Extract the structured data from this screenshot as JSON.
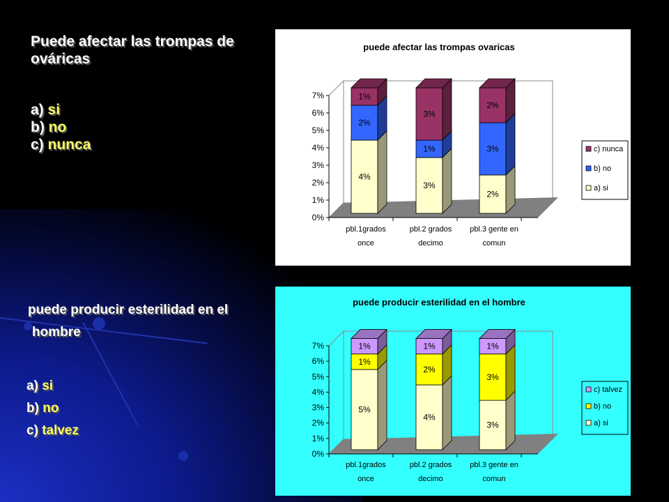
{
  "question1": {
    "title": "Puede afectar las trompas de ováricas",
    "options": [
      {
        "letter": "a)",
        "text": "si"
      },
      {
        "letter": "b)",
        "text": "no"
      },
      {
        "letter": "c)",
        "text": "nunca"
      }
    ]
  },
  "question2": {
    "title_line1": "puede producir esterilidad en el",
    "title_line2": "hombre",
    "options": [
      {
        "letter": "a)",
        "text": "si"
      },
      {
        "letter": "b)",
        "text": "no"
      },
      {
        "letter": "c)",
        "text": "talvez"
      }
    ]
  },
  "chart_data": [
    {
      "type": "bar",
      "stacked": true,
      "three_d": true,
      "title": "puede afectar las trompas ovaricas",
      "background": "#ffffff",
      "categories": [
        [
          "pbl.1grados",
          "once"
        ],
        [
          "pbl.2 grados",
          "decimo"
        ],
        [
          "pbl.3 gente en",
          "comun"
        ]
      ],
      "series": [
        {
          "name": "a) si",
          "values": [
            4.2,
            3.2,
            2.2
          ],
          "labels": [
            "4%",
            "3%",
            "2%"
          ],
          "color": "#ffffcc"
        },
        {
          "name": "b) no",
          "values": [
            2.0,
            1.0,
            3.0
          ],
          "labels": [
            "2%",
            "1%",
            "3%"
          ],
          "color": "#3366ff"
        },
        {
          "name": "c) nunca",
          "values": [
            1.0,
            3.0,
            2.0
          ],
          "labels": [
            "1%",
            "3%",
            "2%"
          ],
          "color": "#993366"
        }
      ],
      "y_ticks": [
        "0%",
        "1%",
        "2%",
        "3%",
        "4%",
        "5%",
        "6%",
        "7%"
      ],
      "ylim": [
        0,
        7
      ],
      "grid": false,
      "legend": "right"
    },
    {
      "type": "bar",
      "stacked": true,
      "three_d": true,
      "title": "puede producir esterilidad en el hombre",
      "background": "#33ffff",
      "categories": [
        [
          "pbl.1grados",
          "once"
        ],
        [
          "pbl.2 grados",
          "decimo"
        ],
        [
          "pbl.3 gente en",
          "comun"
        ]
      ],
      "series": [
        {
          "name": "a) si",
          "values": [
            5.2,
            4.2,
            3.2
          ],
          "labels": [
            "5%",
            "4%",
            "3%"
          ],
          "color": "#ffffcc"
        },
        {
          "name": "b) no",
          "values": [
            1.0,
            2.0,
            3.0
          ],
          "labels": [
            "1%",
            "2%",
            "3%"
          ],
          "color": "#ffff00"
        },
        {
          "name": "c) talvez",
          "values": [
            1.0,
            1.0,
            1.0
          ],
          "labels": [
            "1%",
            "1%",
            "1%"
          ],
          "color": "#cc99ff"
        }
      ],
      "y_ticks": [
        "0%",
        "1%",
        "2%",
        "3%",
        "4%",
        "5%",
        "6%",
        "7%"
      ],
      "ylim": [
        0,
        7
      ],
      "grid": false,
      "legend": "right"
    }
  ]
}
